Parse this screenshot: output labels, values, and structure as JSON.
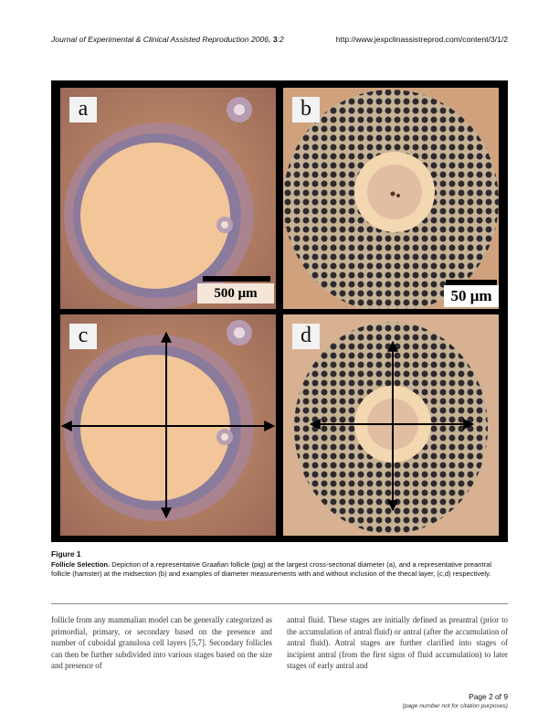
{
  "header": {
    "journal": "Journal of Experimental & Clinical Assisted Reproduction",
    "year": "2006,",
    "volume": "3",
    "issue": ":2",
    "url": "http://www.jexpclinassistreprod.com/content/3/1/2"
  },
  "figure": {
    "panels": [
      {
        "label": "a",
        "scale_bar": "500 μm"
      },
      {
        "label": "b",
        "scale_bar": "50 μm"
      },
      {
        "label": "c"
      },
      {
        "label": "d"
      }
    ],
    "title": "Figure 1",
    "caption_title": "Follicle Selection.",
    "caption_text": " Depiction of a representative Graafian follicle (pig) at the largest cross-sectional diameter (a), and a representative preantral follicle (hamster) at the midsection (b) and examples of diameter measurements with and without inclusion of the thecal layer, (c,d) respectively."
  },
  "body": {
    "left": "follicle from any mammalian model can be generally categorized as primordial, primary, or secondary based on the presence and number of cuboidal granulosa cell layers [5,7]. Secondary follicles can then be further subdivided into various stages based on the size and presence of",
    "right": "antral fluid. These stages are initially defined as preantral (prior to the accumulation of antral fluid) or antral (after the accumulation of antral fluid). Antral stages are further clarified into stages of incipient antral (from the first signs of fluid accumulation) to later stages of early antral and"
  },
  "footer": {
    "page": "Page 2 of 9",
    "note": "(page number not for citation purposes)"
  }
}
